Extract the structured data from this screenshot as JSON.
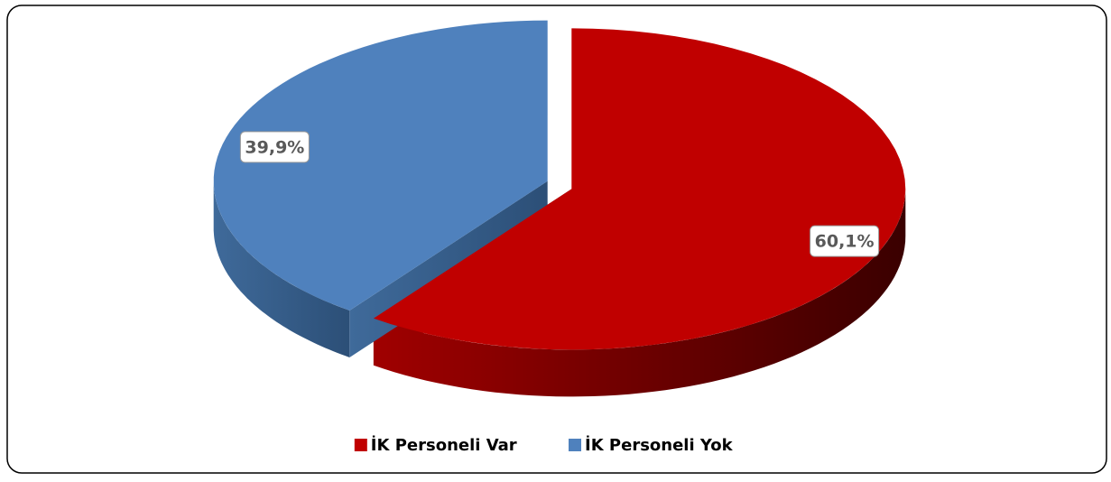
{
  "chart_data": {
    "type": "pie",
    "categories": [
      "İK Personeli Var",
      "İK Personeli Yok"
    ],
    "values": [
      60.1,
      39.9
    ],
    "value_labels": [
      "60,1%",
      "39,9%"
    ],
    "colors": [
      "#c00000",
      "#4f81bd"
    ],
    "legend": "bottom"
  }
}
